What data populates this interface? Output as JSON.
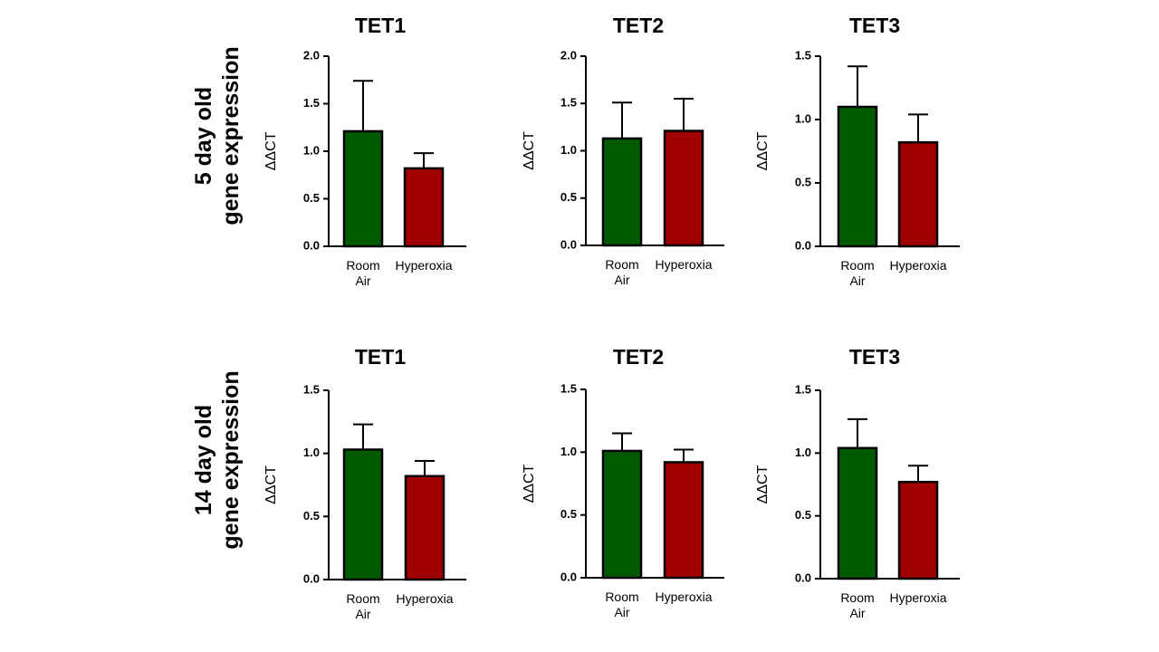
{
  "rows": [
    {
      "label_line1": "5 day old",
      "label_line2": "gene expression"
    },
    {
      "label_line1": "14 day old",
      "label_line2": "gene expression"
    }
  ],
  "colors": {
    "room_air": "#005a00",
    "hyperoxia": "#a00000",
    "axis": "#000000"
  },
  "chart_data": [
    {
      "type": "bar",
      "title": "TET1",
      "ylabel": "ΔΔCT",
      "ylim": [
        0,
        2.0
      ],
      "yticks": [
        "0.0",
        "0.5",
        "1.0",
        "1.5",
        "2.0"
      ],
      "categories": [
        "Room Air",
        "Hyperoxia"
      ],
      "values": [
        1.21,
        0.82
      ],
      "error": [
        0.53,
        0.16
      ],
      "grid": false
    },
    {
      "type": "bar",
      "title": "TET2",
      "ylabel": "ΔΔCT",
      "ylim": [
        0,
        2.0
      ],
      "yticks": [
        "0.0",
        "0.5",
        "1.0",
        "1.5",
        "2.0"
      ],
      "categories": [
        "Room Air",
        "Hyperoxia"
      ],
      "values": [
        1.13,
        1.21
      ],
      "error": [
        0.38,
        0.34
      ],
      "grid": false
    },
    {
      "type": "bar",
      "title": "TET3",
      "ylabel": "ΔΔCT",
      "ylim": [
        0,
        1.5
      ],
      "yticks": [
        "0.0",
        "0.5",
        "1.0",
        "1.5"
      ],
      "categories": [
        "Room Air",
        "Hyperoxia"
      ],
      "values": [
        1.1,
        0.82
      ],
      "error": [
        0.32,
        0.22
      ],
      "grid": false
    },
    {
      "type": "bar",
      "title": "TET1",
      "ylabel": "ΔΔCT",
      "ylim": [
        0,
        1.5
      ],
      "yticks": [
        "0.0",
        "0.5",
        "1.0",
        "1.5"
      ],
      "categories": [
        "Room Air",
        "Hyperoxia"
      ],
      "values": [
        1.03,
        0.82
      ],
      "error": [
        0.2,
        0.12
      ],
      "grid": false
    },
    {
      "type": "bar",
      "title": "TET2",
      "ylabel": "ΔΔCT",
      "ylim": [
        0,
        1.5
      ],
      "yticks": [
        "0.0",
        "0.5",
        "1.0",
        "1.5"
      ],
      "categories": [
        "Room Air",
        "Hyperoxia"
      ],
      "values": [
        1.01,
        0.92
      ],
      "error": [
        0.14,
        0.1
      ],
      "grid": false
    },
    {
      "type": "bar",
      "title": "TET3",
      "ylabel": "ΔΔCT",
      "ylim": [
        0,
        1.5
      ],
      "yticks": [
        "0.0",
        "0.5",
        "1.0",
        "1.5"
      ],
      "categories": [
        "Room Air",
        "Hyperoxia"
      ],
      "values": [
        1.04,
        0.77
      ],
      "error": [
        0.23,
        0.13
      ],
      "grid": false
    }
  ]
}
